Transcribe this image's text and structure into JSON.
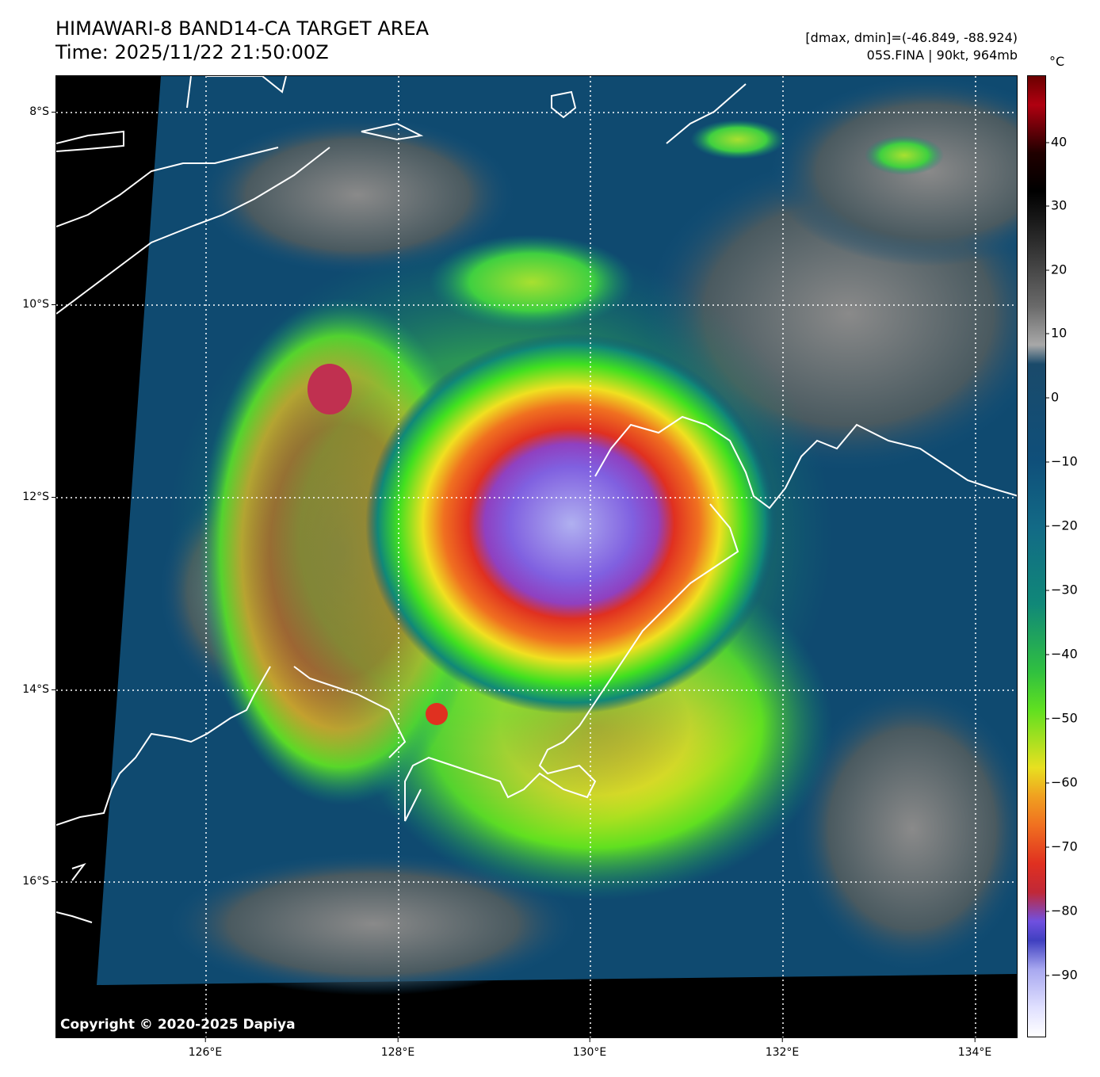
{
  "header": {
    "title_line1": "HIMAWARI-8 BAND14-CA TARGET AREA",
    "title_line2": "Time: 2025/11/22 21:50:00Z",
    "stats_line1": "[dmax, dmin]=(-46.849, -88.924)",
    "stats_line2": "05S.FINA | 90kt, 964mb"
  },
  "map": {
    "lat_labels": [
      "8°S",
      "10°S",
      "12°S",
      "14°S",
      "16°S"
    ],
    "lon_labels": [
      "126°E",
      "128°E",
      "130°E",
      "132°E",
      "134°E"
    ],
    "copyright": "Copyright © 2020-2025 Dapiya",
    "gridline_style": "dotted white",
    "coastline_color": "#ffffff"
  },
  "colorbar": {
    "unit": "°C",
    "ticks": [
      "40",
      "30",
      "20",
      "10",
      "0",
      "−10",
      "−20",
      "−30",
      "−40",
      "−50",
      "−60",
      "−70",
      "−80",
      "−90"
    ],
    "range": [
      -100,
      50
    ],
    "colors": {
      "warm_top": "#6b0000",
      "red": "#e03020",
      "orange": "#f08020",
      "yellow": "#e8e020",
      "green": "#40e020",
      "teal": "#108080",
      "blue": "#0f4f7a",
      "gray": "#8a8a8a",
      "black": "#000000",
      "purple": "#7050e0",
      "lavender": "#a8a8f0",
      "white": "#ffffff"
    }
  }
}
